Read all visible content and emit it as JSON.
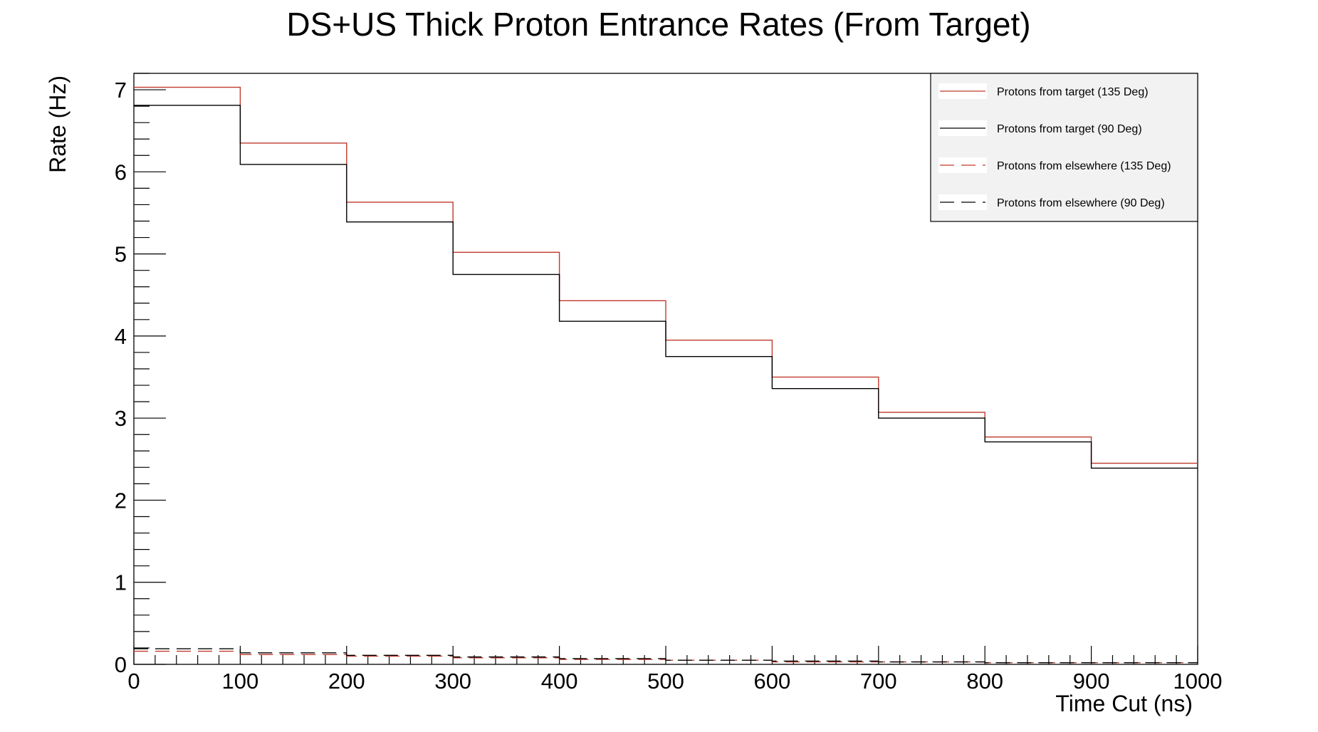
{
  "chart_data": {
    "type": "line",
    "title": "DS+US Thick Proton Entrance Rates (From Target)",
    "xlabel": "Time Cut (ns)",
    "ylabel": "Rate (Hz)",
    "xlim": [
      0,
      1000
    ],
    "ylim": [
      0,
      7.2
    ],
    "x_ticks": [
      "0",
      "100",
      "200",
      "300",
      "400",
      "500",
      "600",
      "700",
      "800",
      "900",
      "1000"
    ],
    "y_ticks": [
      "0",
      "1",
      "2",
      "3",
      "4",
      "5",
      "6",
      "7"
    ],
    "legend_position": "top-right",
    "bin_edges": [
      0,
      100,
      200,
      300,
      400,
      500,
      600,
      700,
      800,
      900,
      1000
    ],
    "series": [
      {
        "name": "Protons from target (135 Deg)",
        "color": "#c0392b",
        "dash": "solid",
        "values": [
          7.03,
          6.35,
          5.63,
          5.02,
          4.43,
          3.95,
          3.5,
          3.07,
          2.77,
          2.45
        ]
      },
      {
        "name": "Protons from target (90 Deg)",
        "color": "#000000",
        "dash": "solid",
        "values": [
          6.81,
          6.09,
          5.39,
          4.75,
          4.18,
          3.75,
          3.36,
          3.0,
          2.71,
          2.39
        ]
      },
      {
        "name": "Protons from elsewhere (135 Deg)",
        "color": "#c0392b",
        "dash": "dashed",
        "values": [
          0.16,
          0.12,
          0.1,
          0.08,
          0.06,
          0.05,
          0.03,
          0.03,
          0.02,
          0.02
        ]
      },
      {
        "name": "Protons from elsewhere (90 Deg)",
        "color": "#000000",
        "dash": "dashed",
        "values": [
          0.19,
          0.14,
          0.11,
          0.09,
          0.07,
          0.05,
          0.04,
          0.03,
          0.02,
          0.02
        ]
      }
    ]
  }
}
